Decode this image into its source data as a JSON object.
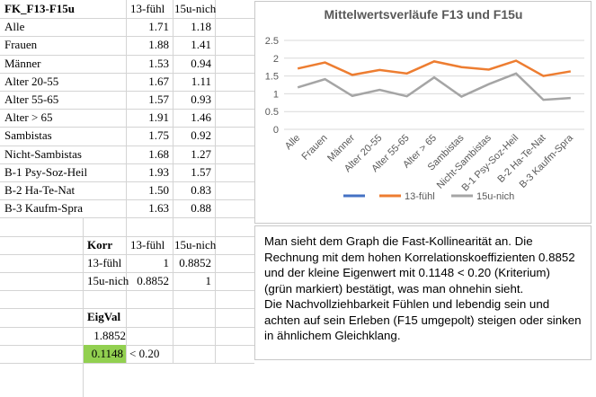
{
  "table": {
    "header": [
      "FK_F13-F15u",
      "13-fühl",
      "15u-nich"
    ],
    "rows": [
      [
        "Alle",
        "1.71",
        "1.18"
      ],
      [
        "Frauen",
        "1.88",
        "1.41"
      ],
      [
        "Männer",
        "1.53",
        "0.94"
      ],
      [
        "Alter 20-55",
        "1.67",
        "1.11"
      ],
      [
        "Alter 55-65",
        "1.57",
        "0.93"
      ],
      [
        "Alter > 65",
        "1.91",
        "1.46"
      ],
      [
        "Sambistas",
        "1.75",
        "0.92"
      ],
      [
        "Nicht-Sambistas",
        "1.68",
        "1.27"
      ],
      [
        "B-1 Psy-Soz-Heil",
        "1.93",
        "1.57"
      ],
      [
        "B-2 Ha-Te-Nat",
        "1.50",
        "0.83"
      ],
      [
        "B-3 Kaufm-Spra",
        "1.63",
        "0.88"
      ]
    ]
  },
  "korr": {
    "header": [
      "Korr",
      "13-fühl",
      "15u-nich"
    ],
    "rows": [
      [
        "13-fühl",
        "1",
        "0.8852"
      ],
      [
        "15u-nich",
        "0.8852",
        "1"
      ]
    ]
  },
  "eigval": {
    "title": "EigVal",
    "values": [
      "1.8852",
      "0.1148"
    ],
    "note": "< 0.20"
  },
  "textbox": {
    "lines": [
      "Man sieht dem Graph die Fast-Kollinearität an. Die",
      "Rechnung mit dem hohen Korrelationskoeffizienten 0.8852",
      "und der kleine Eigenwert mit 0.1148 < 0.20 (Kriterium)",
      "(grün markiert) bestätigt, was man ohnehin sieht.",
      "Die Nachvollziehbarkeit Fühlen und lebendig sein und",
      "achten auf sein Erleben (F15 umgepolt) steigen oder sinken",
      "in ähnlichem Gleichklang."
    ]
  },
  "chart_data": {
    "type": "line",
    "title": "Mittelwertsverläufe F13 und F15u",
    "categories": [
      "Alle",
      "Frauen",
      "Männer",
      "Alter 20-55",
      "Alter 55-65",
      "Alter > 65",
      "Sambistas",
      "Nicht-Sambistas",
      "B-1 Psy-Soz-Heil",
      "B-2 Ha-Te-Nat",
      "B-3 Kaufm-Spra"
    ],
    "series": [
      {
        "name": "13-fühl",
        "color": "#ed7d31",
        "values": [
          1.71,
          1.88,
          1.53,
          1.67,
          1.57,
          1.91,
          1.75,
          1.68,
          1.93,
          1.5,
          1.63
        ]
      },
      {
        "name": "15u-nich",
        "color": "#a5a5a5",
        "values": [
          1.18,
          1.41,
          0.94,
          1.11,
          0.93,
          1.46,
          0.92,
          1.27,
          1.57,
          0.83,
          0.88
        ]
      }
    ],
    "ylim": [
      0,
      2.5
    ],
    "yticks": [
      0,
      0.5,
      1,
      1.5,
      2,
      2.5
    ],
    "grid": true,
    "legend": "bottom"
  }
}
